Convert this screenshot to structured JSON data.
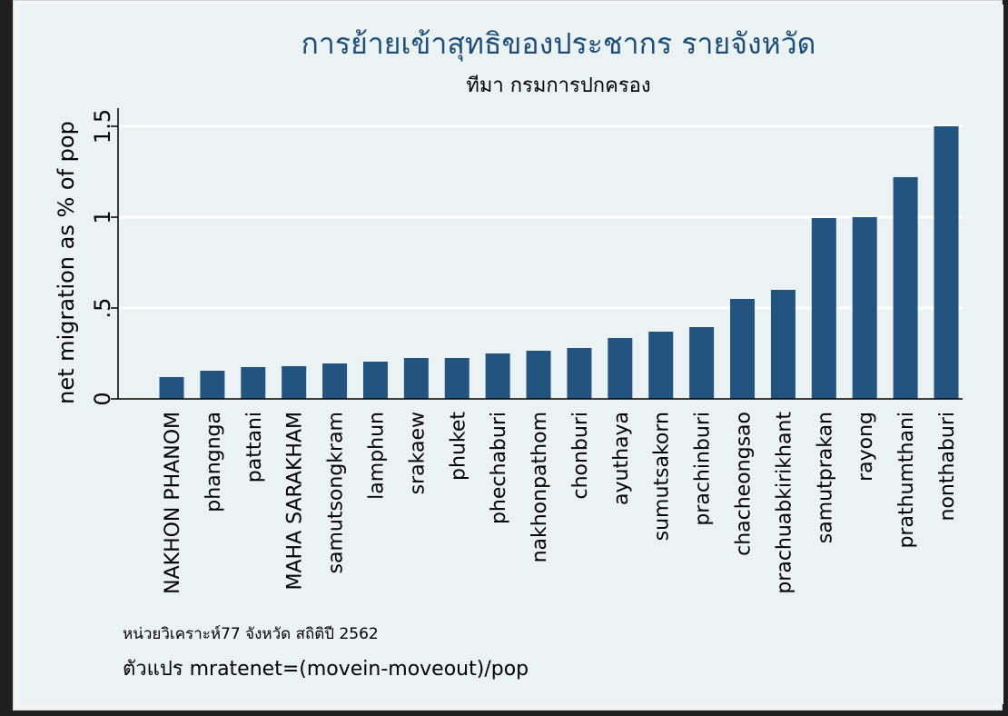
{
  "chart_data": {
    "type": "bar",
    "title": "การย้ายเข้าสุทธิของประชากร รายจังหวัด",
    "subtitle": "ทีมา กรมการปกครอง",
    "ylabel": "net migration as % of pop",
    "xlabel": "",
    "ylim": [
      0,
      1.5
    ],
    "yticks": [
      0,
      0.5,
      1,
      1.5
    ],
    "ytick_labels": [
      "0",
      ".5",
      "1",
      "1.5"
    ],
    "grid": true,
    "categories": [
      "NAKHON PHANOM",
      "phangnga",
      "pattani",
      "MAHA SARAKHAM",
      "samutsongkram",
      "lamphun",
      "srakaew",
      "phuket",
      "phechaburi",
      "nakhonpathom",
      "chonburi",
      "ayuthaya",
      "sumutsakorn",
      "prachinburi",
      "chacheongsao",
      "prachuabkirikhant",
      "samutprakan",
      "rayong",
      "prathumthani",
      "nonthaburi"
    ],
    "values": [
      0.12,
      0.155,
      0.175,
      0.18,
      0.195,
      0.205,
      0.225,
      0.225,
      0.25,
      0.265,
      0.28,
      0.335,
      0.37,
      0.395,
      0.55,
      0.6,
      0.995,
      1.0,
      1.22,
      1.5
    ],
    "bar_color": "#23537f",
    "notes": [
      "หน่วยวิเคราะห์77 จังหวัด สถิติปี  2562",
      "ตัวแปร mratenet=(movein-moveout)/pop"
    ]
  }
}
